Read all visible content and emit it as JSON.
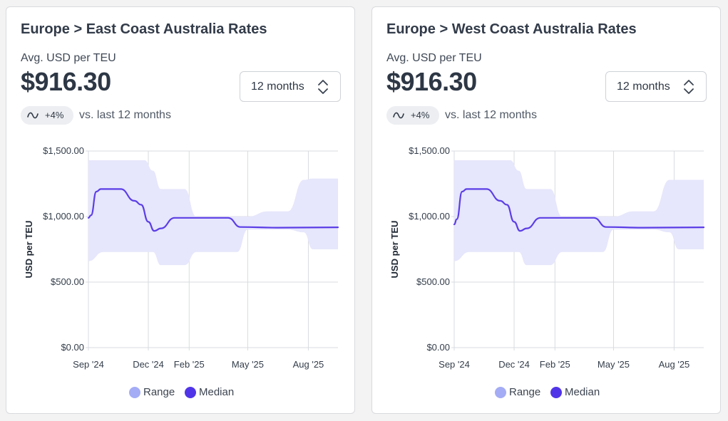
{
  "colors": {
    "range_fill": "#e6e6fc",
    "range_legend": "#a4acf5",
    "median": "#5b3ee6",
    "median_legend": "#5035e8",
    "grid": "#d9dbe0"
  },
  "cards": [
    {
      "title": "Europe > East Coast Australia Rates",
      "metric_label": "Avg. USD per TEU",
      "metric_value": "$916.30",
      "period": "12 months",
      "trend_icon": "trend-wave-icon",
      "trend_value": "+4%",
      "trend_text": "vs. last 12 months",
      "legend": [
        {
          "label": "Range"
        },
        {
          "label": "Median"
        }
      ]
    },
    {
      "title": "Europe > West Coast Australia Rates",
      "metric_label": "Avg. USD per TEU",
      "metric_value": "$916.30",
      "period": "12 months",
      "trend_icon": "trend-wave-icon",
      "trend_value": "+4%",
      "trend_text": "vs. last 12 months",
      "legend": [
        {
          "label": "Range"
        },
        {
          "label": "Median"
        }
      ]
    }
  ],
  "chart_data": [
    {
      "type": "area",
      "title": "Europe > East Coast Australia Rates",
      "xlabel": "",
      "ylabel": "USD per TEU",
      "ylim": [
        0,
        1500
      ],
      "yticks": [
        0,
        500,
        1000,
        1500
      ],
      "ytick_labels": [
        "$0.00",
        "$500.00",
        "$1,000.00",
        "$1,500.00"
      ],
      "xlim": [
        "2024-09-01",
        "2025-09-15"
      ],
      "xticks": [
        "2024-09-01",
        "2024-12-01",
        "2025-02-01",
        "2025-05-01",
        "2025-08-01"
      ],
      "xtick_labels": [
        "Sep '24",
        "Dec '24",
        "Feb '25",
        "May '25",
        "Aug '25"
      ],
      "grid": true,
      "legend_position": "bottom",
      "series": [
        {
          "name": "Range",
          "kind": "band",
          "points": [
            {
              "x": "2024-09-01",
              "low": 660,
              "high": 1430
            },
            {
              "x": "2024-09-24",
              "low": 730,
              "high": 1430
            },
            {
              "x": "2024-11-25",
              "low": 730,
              "high": 1430
            },
            {
              "x": "2024-12-08",
              "low": 730,
              "high": 1350
            },
            {
              "x": "2024-12-20",
              "low": 630,
              "high": 1210
            },
            {
              "x": "2025-01-25",
              "low": 630,
              "high": 1210
            },
            {
              "x": "2025-02-12",
              "low": 730,
              "high": 1000
            },
            {
              "x": "2025-04-15",
              "low": 730,
              "high": 1000
            },
            {
              "x": "2025-05-01",
              "low": 900,
              "high": 1000
            },
            {
              "x": "2025-06-01",
              "low": 900,
              "high": 1040
            },
            {
              "x": "2025-07-01",
              "low": 900,
              "high": 1040
            },
            {
              "x": "2025-07-25",
              "low": 880,
              "high": 1280
            },
            {
              "x": "2025-08-08",
              "low": 750,
              "high": 1290
            },
            {
              "x": "2025-09-15",
              "low": 750,
              "high": 1290
            }
          ]
        },
        {
          "name": "Median",
          "kind": "line",
          "points": [
            {
              "x": "2024-09-01",
              "y": 990
            },
            {
              "x": "2024-09-05",
              "y": 1010
            },
            {
              "x": "2024-09-13",
              "y": 1190
            },
            {
              "x": "2024-09-20",
              "y": 1210
            },
            {
              "x": "2024-10-20",
              "y": 1210
            },
            {
              "x": "2024-11-10",
              "y": 1120
            },
            {
              "x": "2024-11-20",
              "y": 1090
            },
            {
              "x": "2024-12-01",
              "y": 960
            },
            {
              "x": "2024-12-10",
              "y": 890
            },
            {
              "x": "2024-12-20",
              "y": 910
            },
            {
              "x": "2025-01-10",
              "y": 990
            },
            {
              "x": "2025-04-01",
              "y": 990
            },
            {
              "x": "2025-04-20",
              "y": 920
            },
            {
              "x": "2025-06-15",
              "y": 915
            },
            {
              "x": "2025-09-15",
              "y": 918
            }
          ]
        }
      ]
    },
    {
      "type": "area",
      "title": "Europe > West Coast Australia Rates",
      "xlabel": "",
      "ylabel": "USD per TEU",
      "ylim": [
        0,
        1500
      ],
      "yticks": [
        0,
        500,
        1000,
        1500
      ],
      "ytick_labels": [
        "$0.00",
        "$500.00",
        "$1,000.00",
        "$1,500.00"
      ],
      "xlim": [
        "2024-09-01",
        "2025-09-15"
      ],
      "xticks": [
        "2024-09-01",
        "2024-12-01",
        "2025-02-01",
        "2025-05-01",
        "2025-08-01"
      ],
      "xtick_labels": [
        "Sep '24",
        "Dec '24",
        "Feb '25",
        "May '25",
        "Aug '25"
      ],
      "grid": true,
      "legend_position": "bottom",
      "series": [
        {
          "name": "Range",
          "kind": "band",
          "points": [
            {
              "x": "2024-09-01",
              "low": 660,
              "high": 1430
            },
            {
              "x": "2024-09-24",
              "low": 730,
              "high": 1430
            },
            {
              "x": "2024-11-25",
              "low": 730,
              "high": 1430
            },
            {
              "x": "2024-12-08",
              "low": 730,
              "high": 1350
            },
            {
              "x": "2024-12-20",
              "low": 630,
              "high": 1210
            },
            {
              "x": "2025-01-25",
              "low": 630,
              "high": 1210
            },
            {
              "x": "2025-02-12",
              "low": 730,
              "high": 1000
            },
            {
              "x": "2025-04-15",
              "low": 730,
              "high": 1000
            },
            {
              "x": "2025-05-01",
              "low": 900,
              "high": 1000
            },
            {
              "x": "2025-06-01",
              "low": 900,
              "high": 1040
            },
            {
              "x": "2025-07-01",
              "low": 900,
              "high": 1040
            },
            {
              "x": "2025-07-25",
              "low": 880,
              "high": 1280
            },
            {
              "x": "2025-08-08",
              "low": 750,
              "high": 1280
            },
            {
              "x": "2025-09-15",
              "low": 750,
              "high": 1280
            }
          ]
        },
        {
          "name": "Median",
          "kind": "line",
          "points": [
            {
              "x": "2024-09-01",
              "y": 940
            },
            {
              "x": "2024-09-05",
              "y": 980
            },
            {
              "x": "2024-09-13",
              "y": 1190
            },
            {
              "x": "2024-09-20",
              "y": 1210
            },
            {
              "x": "2024-10-20",
              "y": 1210
            },
            {
              "x": "2024-11-10",
              "y": 1120
            },
            {
              "x": "2024-11-20",
              "y": 1090
            },
            {
              "x": "2024-12-01",
              "y": 960
            },
            {
              "x": "2024-12-10",
              "y": 890
            },
            {
              "x": "2024-12-20",
              "y": 910
            },
            {
              "x": "2025-01-10",
              "y": 990
            },
            {
              "x": "2025-04-01",
              "y": 990
            },
            {
              "x": "2025-04-20",
              "y": 920
            },
            {
              "x": "2025-06-15",
              "y": 915
            },
            {
              "x": "2025-09-15",
              "y": 918
            }
          ]
        }
      ]
    }
  ]
}
